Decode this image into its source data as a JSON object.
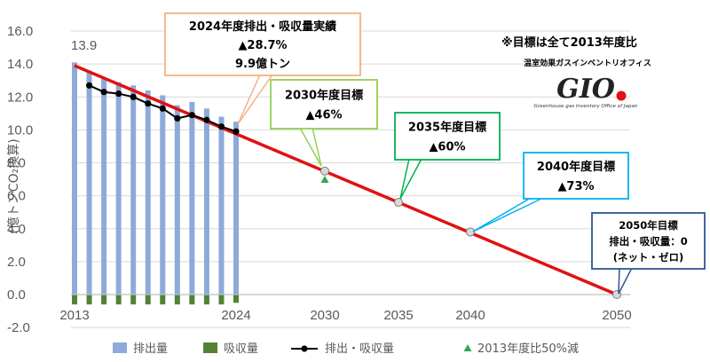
{
  "chart_data": {
    "type": "bar+line",
    "ylabel": "(億トンCO₂換算)",
    "ylim": [
      -2,
      16
    ],
    "yticks": [
      "16.0",
      "14.0",
      "12.0",
      "10.0",
      "8.0",
      "6.0",
      "4.0",
      "2.0",
      "0.0",
      "-2.0"
    ],
    "xticks": [
      "2013",
      "2024",
      "2030",
      "2035",
      "2040",
      "2050"
    ],
    "years": [
      2013,
      2014,
      2015,
      2016,
      2017,
      2018,
      2019,
      2020,
      2021,
      2022,
      2023,
      2024
    ],
    "series": [
      {
        "name": "排出量",
        "color": "#8eaadb",
        "values": [
          14.1,
          13.6,
          13.1,
          12.9,
          12.7,
          12.4,
          12.1,
          11.5,
          11.7,
          11.3,
          10.8,
          10.5
        ]
      },
      {
        "name": "吸収量",
        "color": "#548235",
        "values": [
          -0.6,
          -0.6,
          -0.6,
          -0.6,
          -0.6,
          -0.6,
          -0.6,
          -0.6,
          -0.6,
          -0.6,
          -0.6,
          -0.5
        ]
      },
      {
        "name": "排出・吸収量",
        "color": "#000000",
        "values": [
          null,
          12.7,
          12.3,
          12.2,
          12.0,
          11.6,
          11.3,
          10.7,
          10.9,
          10.6,
          10.2,
          9.9
        ]
      },
      {
        "name": "2013年度比50%減",
        "color": "#2eaa4f",
        "x": 2030,
        "y": 6.95
      }
    ],
    "target_line": {
      "color": "#e11111",
      "points": [
        [
          2013,
          13.9
        ],
        [
          2050,
          0
        ]
      ]
    },
    "milestones": [
      {
        "x": 2030,
        "y": 7.5
      },
      {
        "x": 2035,
        "y": 5.6
      },
      {
        "x": 2040,
        "y": 3.8
      },
      {
        "x": 2050,
        "y": 0
      }
    ],
    "start_label": "13.9",
    "annotations": [
      {
        "border": "#f4b183",
        "lines": [
          "2024年度排出・吸収量実績",
          "▲28.7%",
          "9.9億トン"
        ]
      },
      {
        "border": "#92d050",
        "lines": [
          "2030年度目標",
          "▲46%"
        ]
      },
      {
        "border": "#00b050",
        "lines": [
          "2035年度目標",
          "▲60%"
        ]
      },
      {
        "border": "#00b0f0",
        "lines": [
          "2040年度目標",
          "▲73%"
        ]
      },
      {
        "border": "#2f5597",
        "lines": [
          "2050年目標",
          "排出・吸収量：0",
          "(ネット・ゼロ)"
        ]
      }
    ],
    "note": "※目標は全て2013年度比",
    "logo_caption": "温室効果ガスインベントリオフィス",
    "logo_text": "GIO",
    "logo_subtitle": "Greenhouse gas Inventory Office of Japan"
  }
}
